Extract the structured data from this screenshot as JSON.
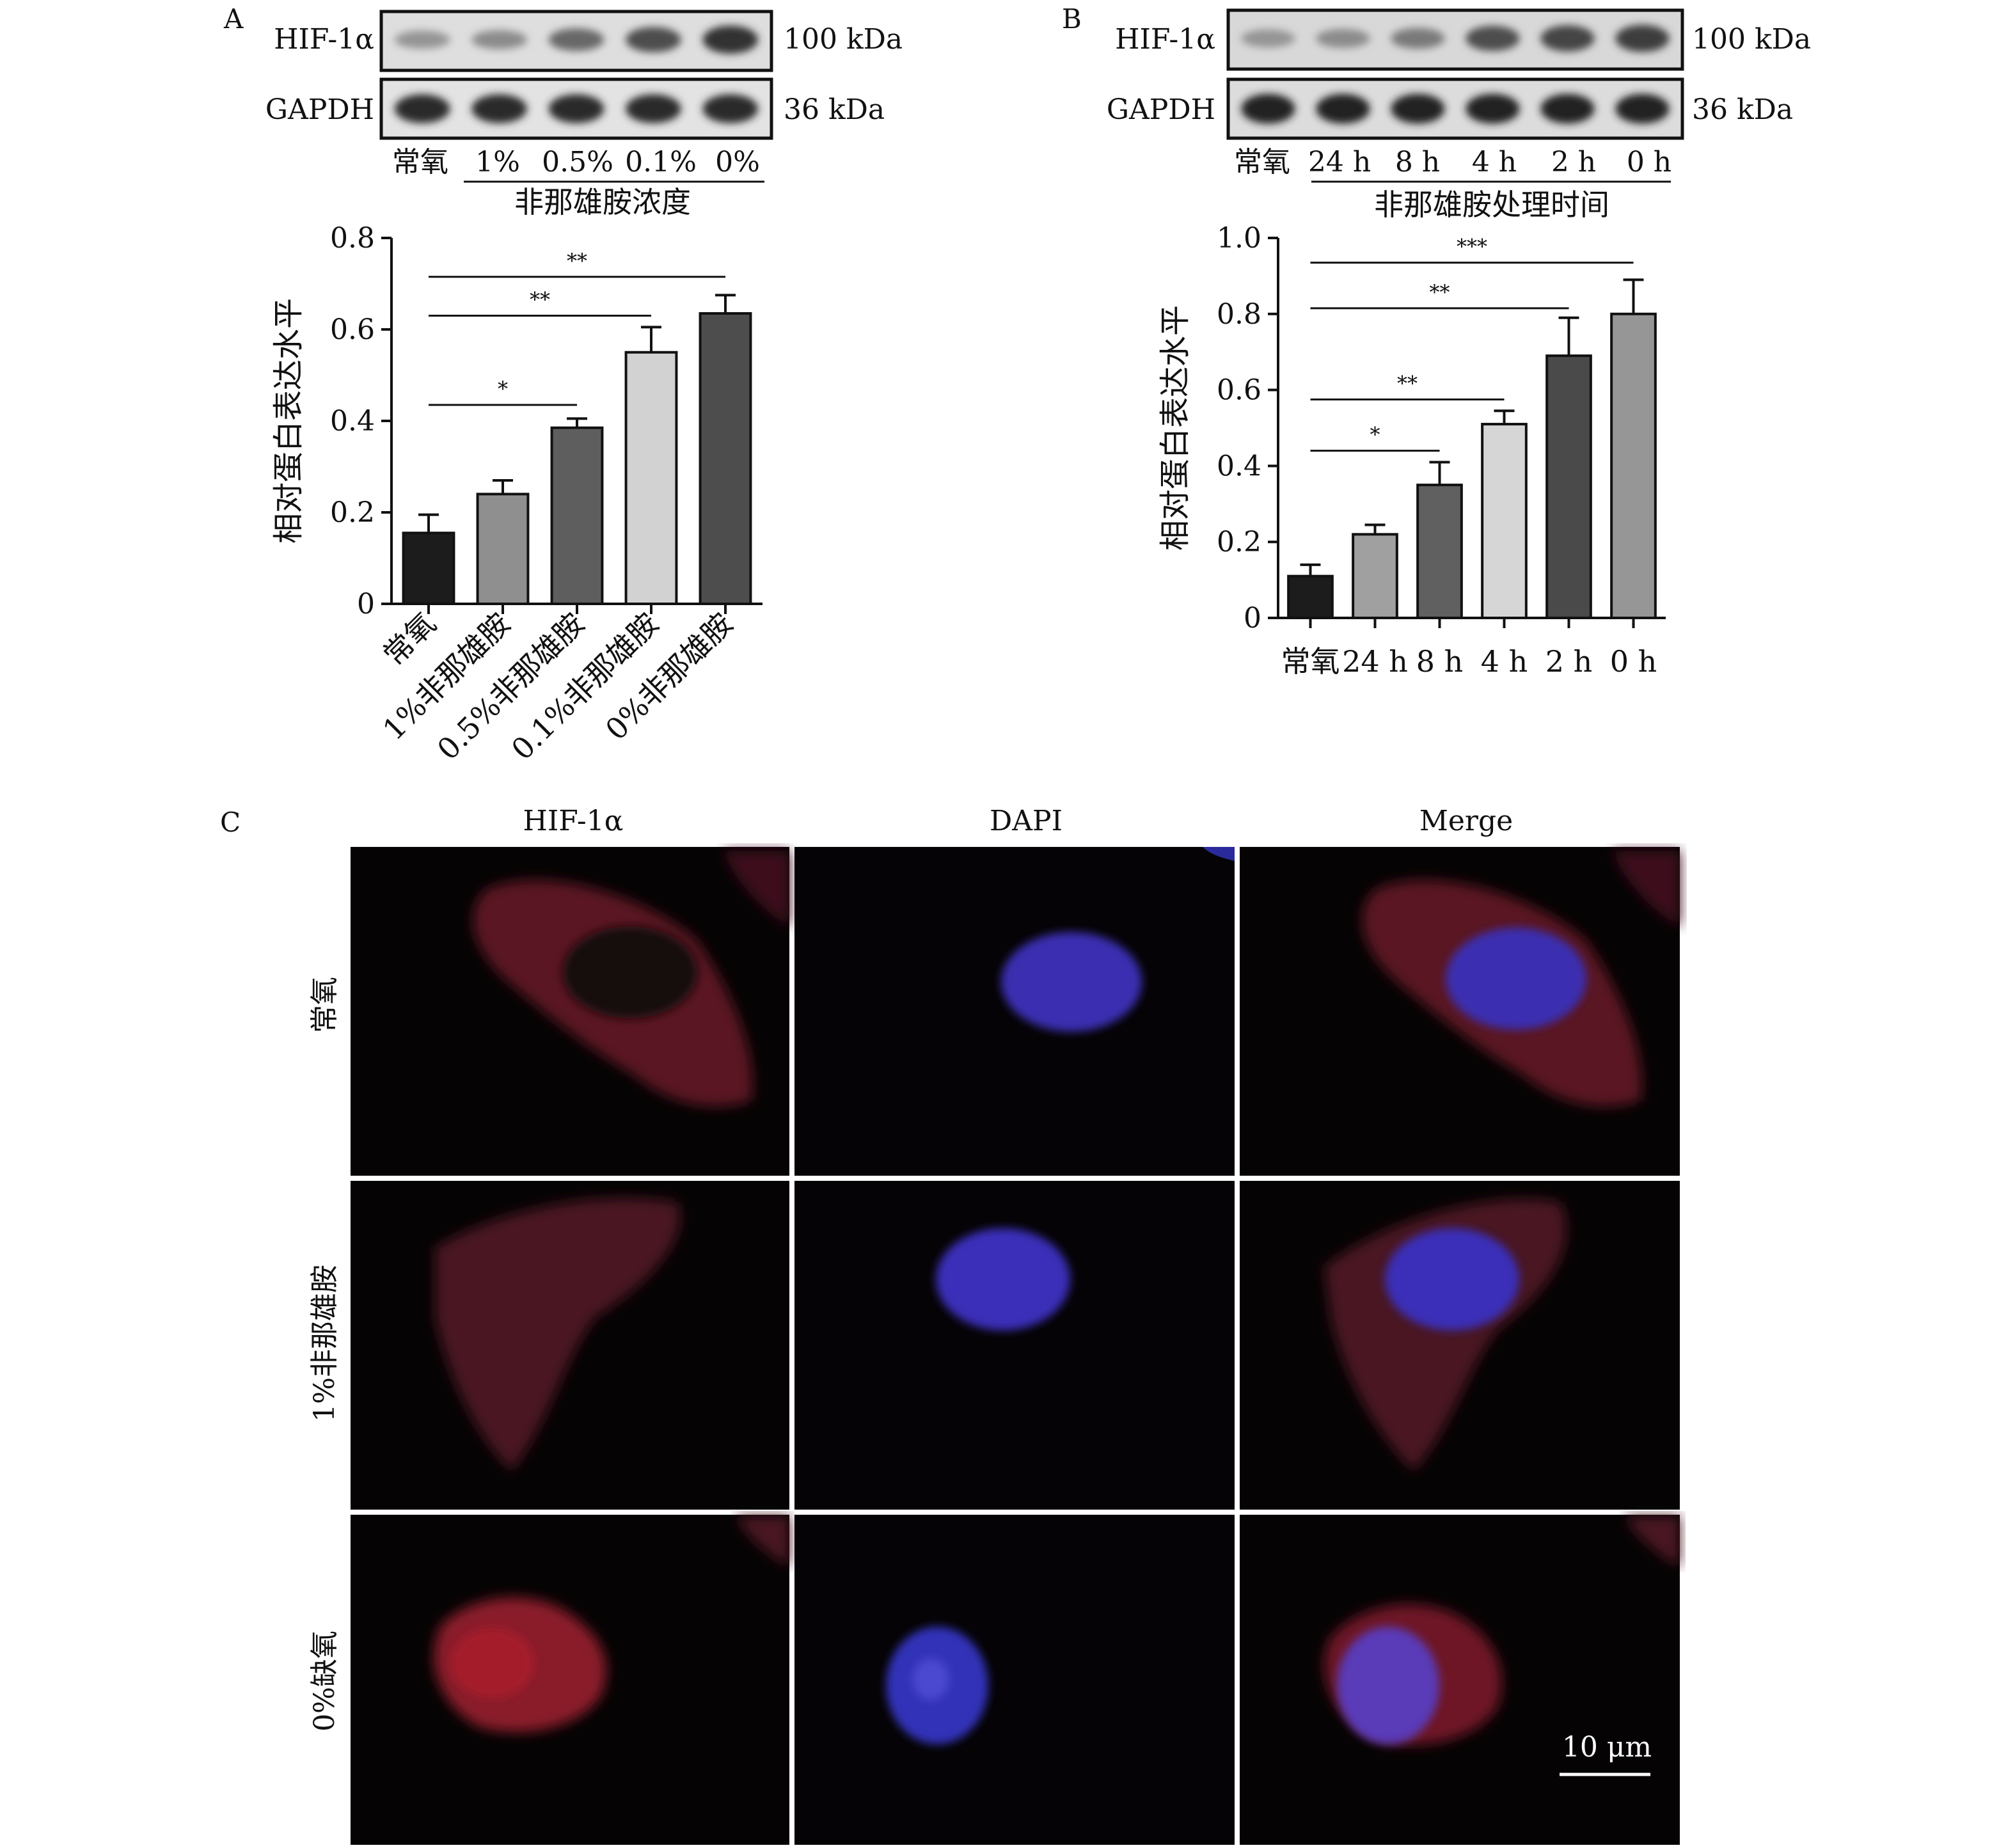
{
  "figure": {
    "panel_labels": [
      "A",
      "B",
      "C"
    ],
    "blot_a": {
      "bands": [
        {
          "name": "HIF-1α",
          "size": "100 kDa",
          "intensity": [
            0.3,
            0.35,
            0.55,
            0.7,
            0.85
          ]
        },
        {
          "name": "GAPDH",
          "size": "36 kDa",
          "intensity": [
            0.9,
            0.9,
            0.9,
            0.9,
            0.9
          ]
        }
      ],
      "lanes": [
        "常氧",
        "1%",
        "0.5%",
        "0.1%",
        "0%"
      ],
      "group_label": "非那雄胺浓度"
    },
    "blot_b": {
      "bands": [
        {
          "name": "HIF-1α",
          "size": "100 kDa",
          "intensity": [
            0.3,
            0.35,
            0.45,
            0.7,
            0.75,
            0.8
          ]
        },
        {
          "name": "GAPDH",
          "size": "36 kDa",
          "intensity": [
            0.95,
            0.95,
            0.95,
            0.95,
            0.95,
            0.95
          ]
        }
      ],
      "lanes": [
        "常氧",
        "24 h",
        "8 h",
        "4 h",
        "2 h",
        "0 h"
      ],
      "group_label": "非那雄胺处理时间"
    },
    "micro": {
      "columns": [
        "HIF-1α",
        "DAPI",
        "Merge"
      ],
      "rows": [
        "常氧",
        "1%非那雄胺",
        "0%缺氧"
      ],
      "scale_bar": "10 μm",
      "hif_intensity": [
        0.35,
        0.35,
        0.75
      ]
    }
  },
  "chart_data": [
    {
      "type": "bar",
      "panel": "A",
      "categories": [
        "常氧",
        "1%非那雄胺",
        "0.5%非那雄胺",
        "0.1%非那雄胺",
        "0%非那雄胺"
      ],
      "values": [
        0.155,
        0.24,
        0.385,
        0.55,
        0.635
      ],
      "errors": [
        0.04,
        0.03,
        0.02,
        0.055,
        0.04
      ],
      "bar_colors": [
        "#1c1c1c",
        "#8f8f8f",
        "#5e5e5e",
        "#d2d2d2",
        "#4d4d4d"
      ],
      "ylabel": "相对蛋白表达水平",
      "ylim": [
        0,
        0.8
      ],
      "yticks": [
        0,
        0.2,
        0.4,
        0.6,
        0.8
      ],
      "ytick_labels": [
        "0",
        "0.2",
        "0.4",
        "0.6",
        "0.8"
      ],
      "significance": [
        {
          "from": 0,
          "to": 2,
          "label": "*",
          "y": 0.435
        },
        {
          "from": 0,
          "to": 3,
          "label": "**",
          "y": 0.63
        },
        {
          "from": 0,
          "to": 4,
          "label": "**",
          "y": 0.715
        }
      ]
    },
    {
      "type": "bar",
      "panel": "B",
      "categories": [
        "常氧",
        "24 h",
        "8 h",
        "4 h",
        "2 h",
        "0 h"
      ],
      "values": [
        0.11,
        0.22,
        0.35,
        0.51,
        0.69,
        0.8
      ],
      "errors": [
        0.03,
        0.025,
        0.06,
        0.035,
        0.1,
        0.09
      ],
      "bar_colors": [
        "#1c1c1c",
        "#a0a0a0",
        "#606060",
        "#d6d6d6",
        "#4a4a4a",
        "#969696"
      ],
      "ylabel": "相对蛋白表达水平",
      "ylim": [
        0,
        1.0
      ],
      "yticks": [
        0,
        0.2,
        0.4,
        0.6,
        0.8,
        1.0
      ],
      "ytick_labels": [
        "0",
        "0.2",
        "0.4",
        "0.6",
        "0.8",
        "1.0"
      ],
      "significance": [
        {
          "from": 0,
          "to": 2,
          "label": "*",
          "y": 0.44
        },
        {
          "from": 0,
          "to": 3,
          "label": "**",
          "y": 0.575
        },
        {
          "from": 0,
          "to": 4,
          "label": "**",
          "y": 0.815
        },
        {
          "from": 0,
          "to": 5,
          "label": "***",
          "y": 0.935
        }
      ]
    }
  ]
}
